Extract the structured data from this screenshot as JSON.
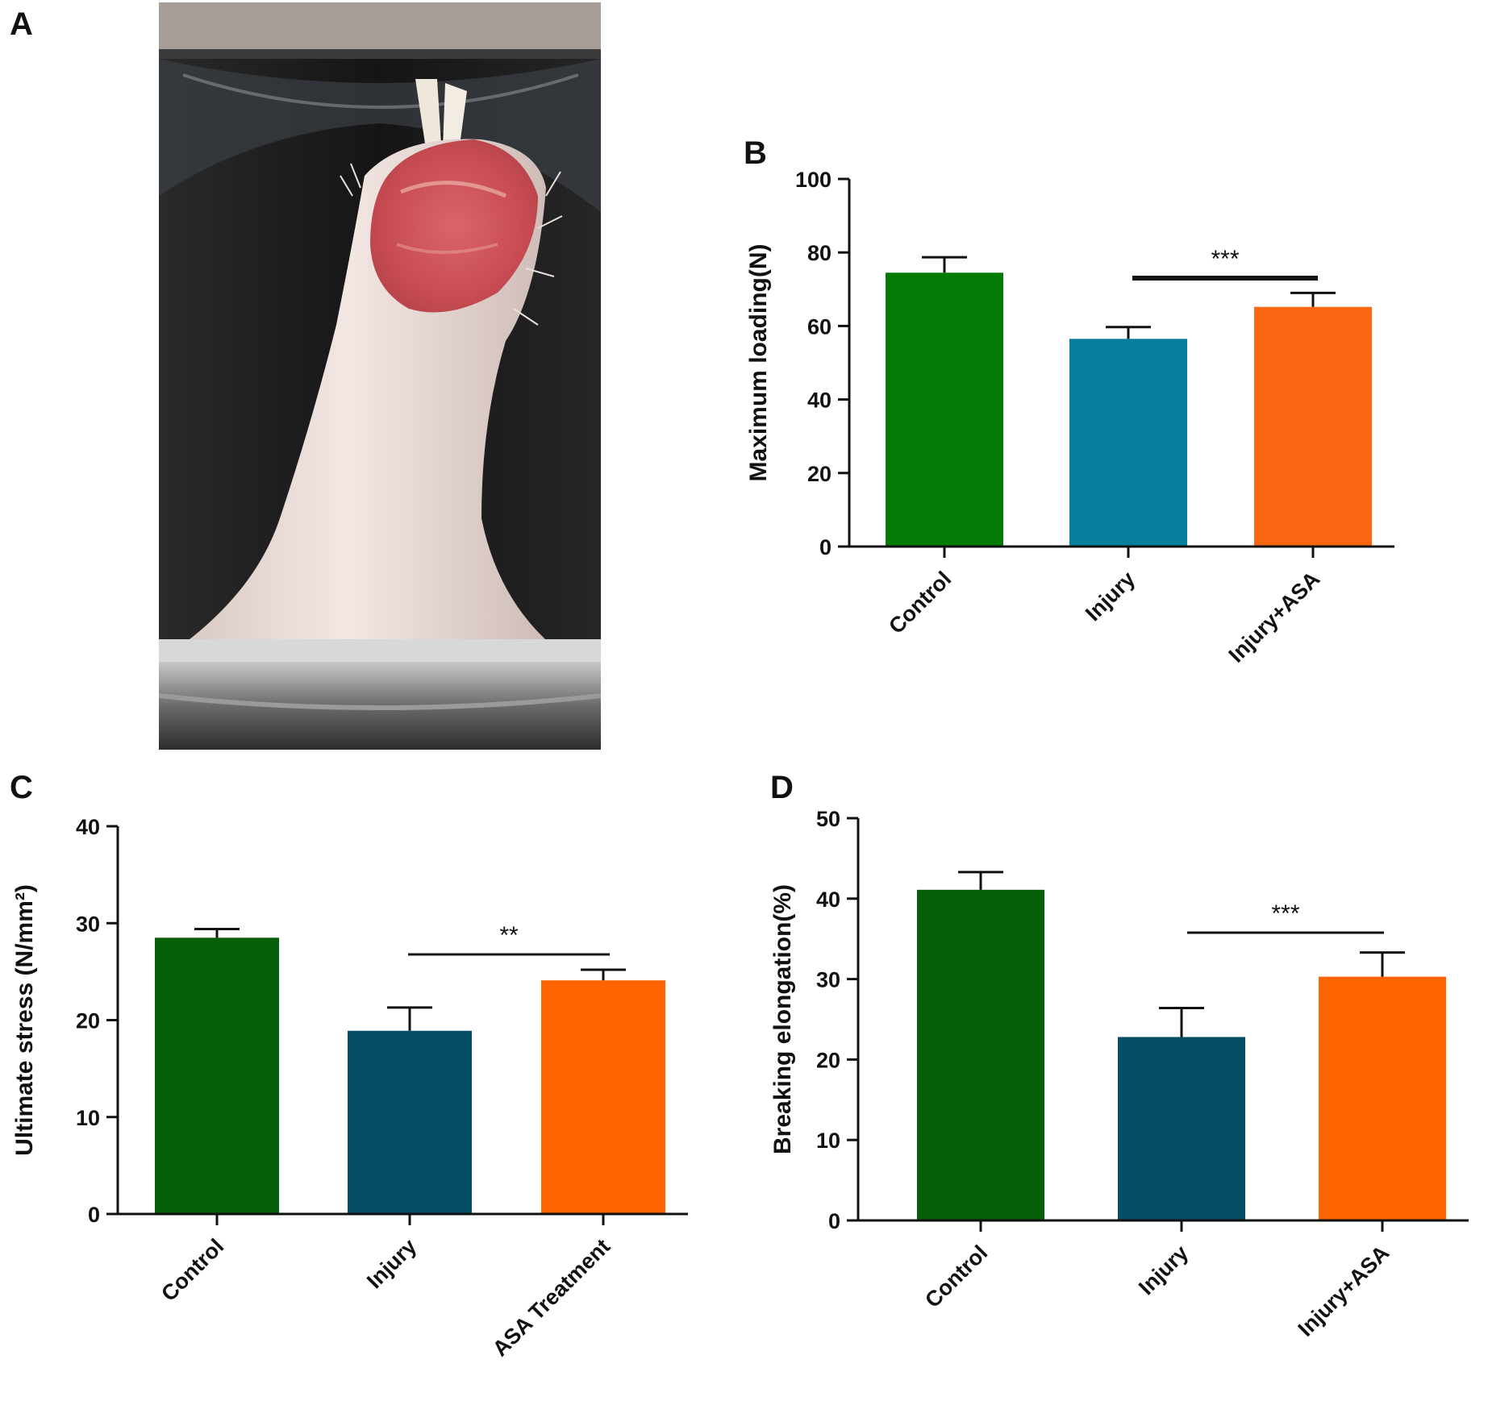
{
  "panels": {
    "a": "A",
    "b": "B",
    "c": "C",
    "d": "D"
  },
  "chart_data": [
    {
      "panel": "B",
      "type": "bar",
      "ylabel": "Maximum loading(N)",
      "ylim": [
        0,
        100
      ],
      "yticks": [
        0,
        20,
        40,
        60,
        80,
        100
      ],
      "categories": [
        "Control",
        "Injury",
        "Injury+ASA"
      ],
      "values": [
        74.5,
        56.5,
        65.2
      ],
      "errors": [
        4.2,
        3.2,
        3.8
      ],
      "colors": [
        "#057a05",
        "#087e9c",
        "#fb6612"
      ],
      "significance": {
        "from": 1,
        "to": 2,
        "label": "***"
      },
      "grid": false
    },
    {
      "panel": "C",
      "type": "bar",
      "ylabel": "Ultimate stress (N/mm²)",
      "ylim": [
        0,
        40
      ],
      "yticks": [
        0,
        10,
        20,
        30,
        40
      ],
      "categories": [
        "Control",
        "Injury",
        "ASA Treatment"
      ],
      "values": [
        28.5,
        18.9,
        24.1
      ],
      "errors": [
        0.9,
        2.4,
        1.1
      ],
      "colors": [
        "#055e08",
        "#054f66",
        "#fe6402"
      ],
      "significance": {
        "from": 1,
        "to": 2,
        "label": "**"
      },
      "grid": false
    },
    {
      "panel": "D",
      "type": "bar",
      "ylabel": "Breaking elongation(%)",
      "ylim": [
        0,
        50
      ],
      "yticks": [
        0,
        10,
        20,
        30,
        40,
        50
      ],
      "categories": [
        "Control",
        "Injury",
        "Injury+ASA"
      ],
      "values": [
        41.1,
        22.8,
        30.3
      ],
      "errors": [
        2.2,
        3.6,
        3.0
      ],
      "colors": [
        "#055e08",
        "#054f66",
        "#fe6402"
      ],
      "significance": {
        "from": 1,
        "to": 2,
        "label": "***"
      },
      "grid": false
    }
  ]
}
